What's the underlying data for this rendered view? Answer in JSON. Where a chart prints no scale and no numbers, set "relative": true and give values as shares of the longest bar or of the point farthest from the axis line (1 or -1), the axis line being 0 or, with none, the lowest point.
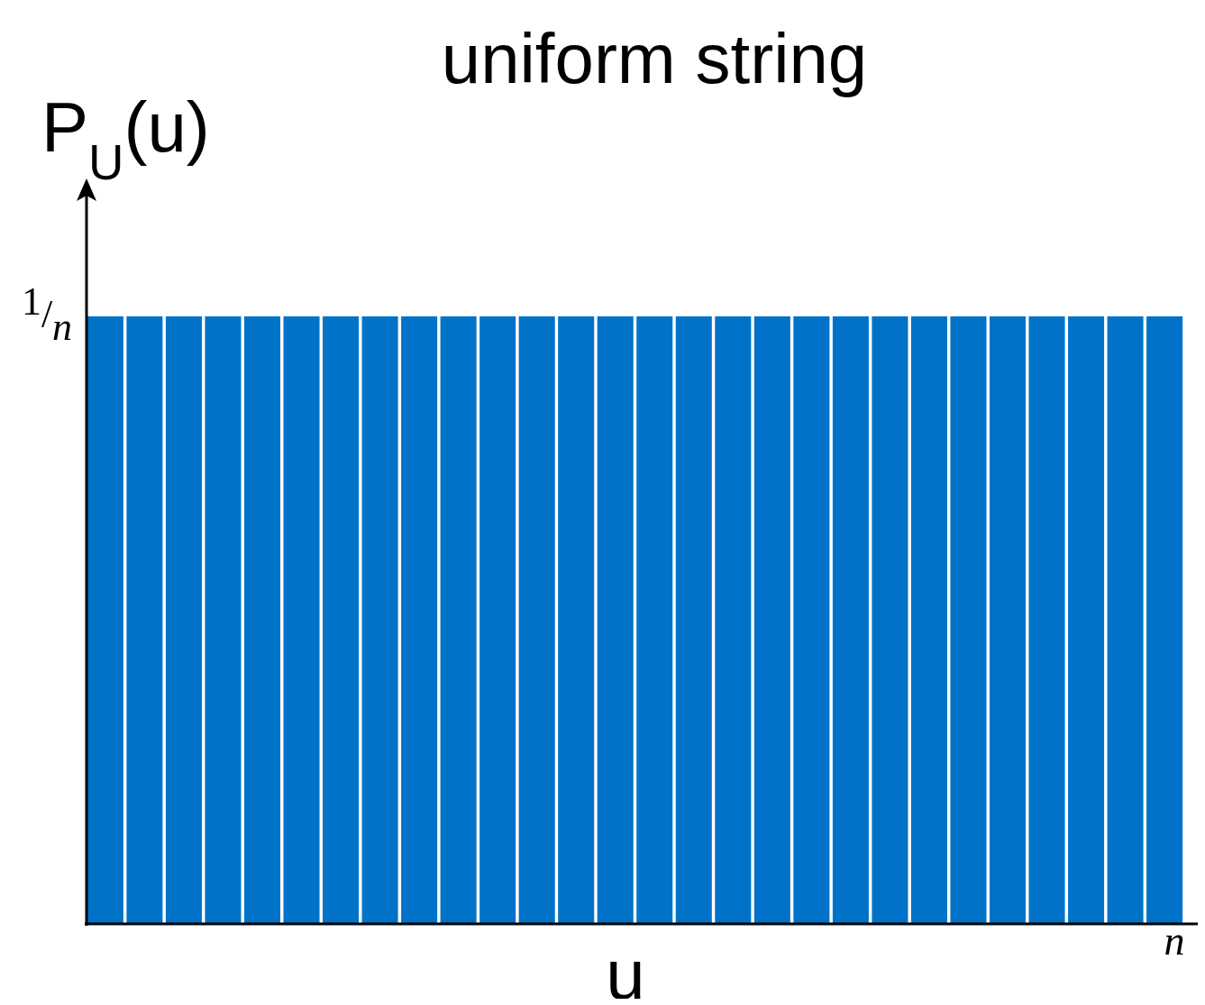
{
  "chart_data": {
    "type": "bar",
    "title": "uniform string",
    "xlabel": "u",
    "ylabel": "P$_{U}$(u)",
    "relative": true,
    "categories": [
      null,
      null,
      null,
      null,
      null,
      null,
      null,
      null,
      null,
      null,
      null,
      null,
      null,
      null,
      null,
      null,
      null,
      null,
      null,
      null,
      null,
      null,
      null,
      null,
      null,
      null,
      null,
      null
    ],
    "values": [
      1,
      1,
      1,
      1,
      1,
      1,
      1,
      1,
      1,
      1,
      1,
      1,
      1,
      1,
      1,
      1,
      1,
      1,
      1,
      1,
      1,
      1,
      1,
      1,
      1,
      1,
      1,
      1
    ],
    "color": "#0073c9",
    "annotations": [
      "1/n",
      "n"
    ]
  }
}
